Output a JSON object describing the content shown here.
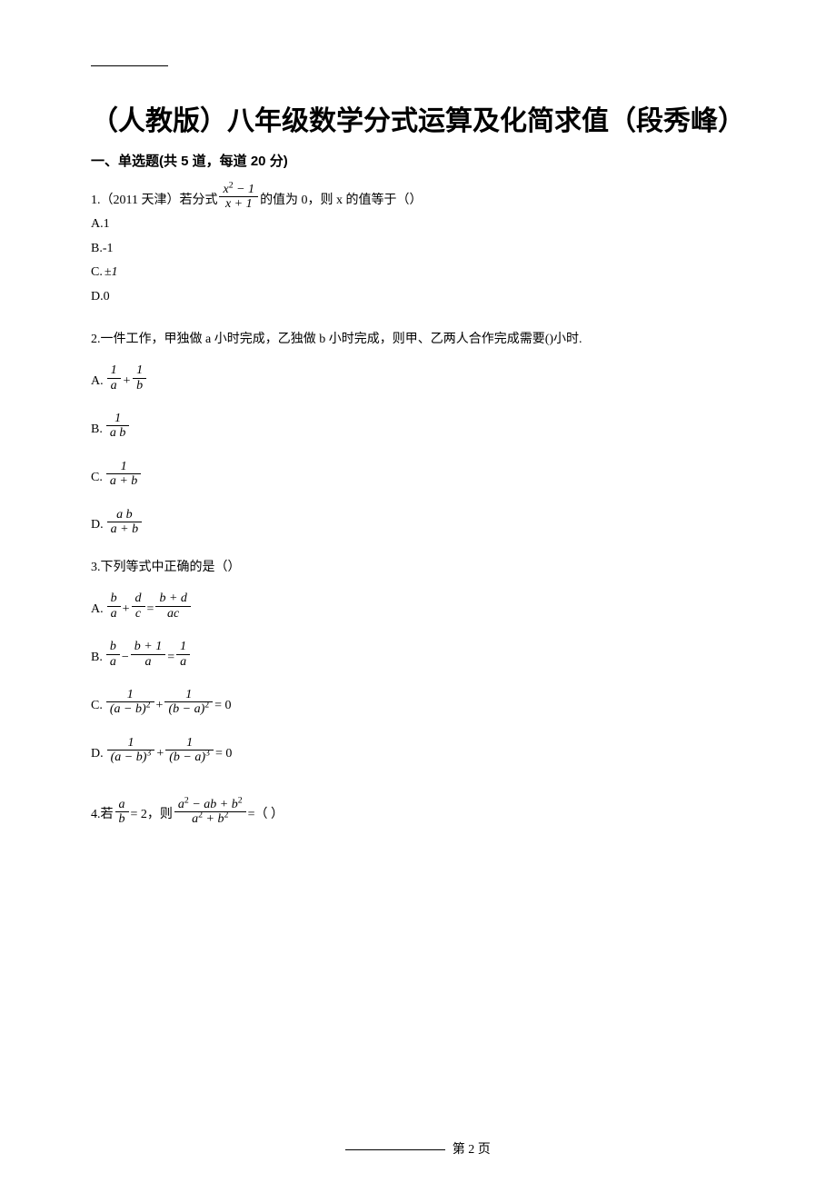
{
  "colors": {
    "background": "#ffffff",
    "text": "#000000"
  },
  "title": "（人教版）八年级数学分式运算及化简求值（段秀峰）",
  "section": {
    "label": "一、单选题(共 5 道，每道 20 分)"
  },
  "q1": {
    "prefix": "1.（2011 天津）若分式",
    "frac_num": "x² − 1",
    "frac_den": "x + 1",
    "suffix": "的值为 0，则 x 的值等于（）",
    "optA": "A.1",
    "optB": "B.-1",
    "optC_label": "C.",
    "optC_val": "±1",
    "optD": "D.0"
  },
  "q2": {
    "text": "2.一件工作，甲独做 a 小时完成，乙独做 b 小时完成，则甲、乙两人合作完成需要()小时.",
    "A_label": "A.",
    "A_f1_num": "1",
    "A_f1_den": "a",
    "A_plus": " + ",
    "A_f2_num": "1",
    "A_f2_den": "b",
    "B_label": "B.",
    "B_num": "1",
    "B_den": "a b",
    "C_label": "C.",
    "C_num": "1",
    "C_den": "a + b",
    "D_label": "D.",
    "D_num": "a b",
    "D_den": "a + b"
  },
  "q3": {
    "text": "3.下列等式中正确的是（）",
    "A_label": "A.",
    "A_f1_num": "b",
    "A_f1_den": "a",
    "A_plus1": " + ",
    "A_f2_num": "d",
    "A_f2_den": "c",
    "A_eq": " = ",
    "A_f3_num": "b + d",
    "A_f3_den": "ac",
    "B_label": "B.",
    "B_f1_num": "b",
    "B_f1_den": "a",
    "B_minus": " − ",
    "B_f2_num": "b + 1",
    "B_f2_den": "a",
    "B_eq": " = ",
    "B_f3_num": "1",
    "B_f3_den": "a",
    "C_label": "C.",
    "C_f1_num": "1",
    "C_f1_den": "(a − b)²",
    "C_plus": " + ",
    "C_f2_num": "1",
    "C_f2_den": "(b − a)²",
    "C_tail": " = 0",
    "D_label": "D.",
    "D_f1_num": "1",
    "D_f1_den": "(a − b)³",
    "D_plus": " + ",
    "D_f2_num": "1",
    "D_f2_den": "(b − a)³",
    "D_tail": " = 0"
  },
  "q4": {
    "prefix": "4.若",
    "f1_num": "a",
    "f1_den": "b",
    "eq1": " = 2",
    "mid": "，则",
    "f2_num": "a² − ab + b²",
    "f2_den": "a² + b²",
    "suffix": " =（ ）"
  },
  "footer": {
    "text": "第 2 页"
  }
}
